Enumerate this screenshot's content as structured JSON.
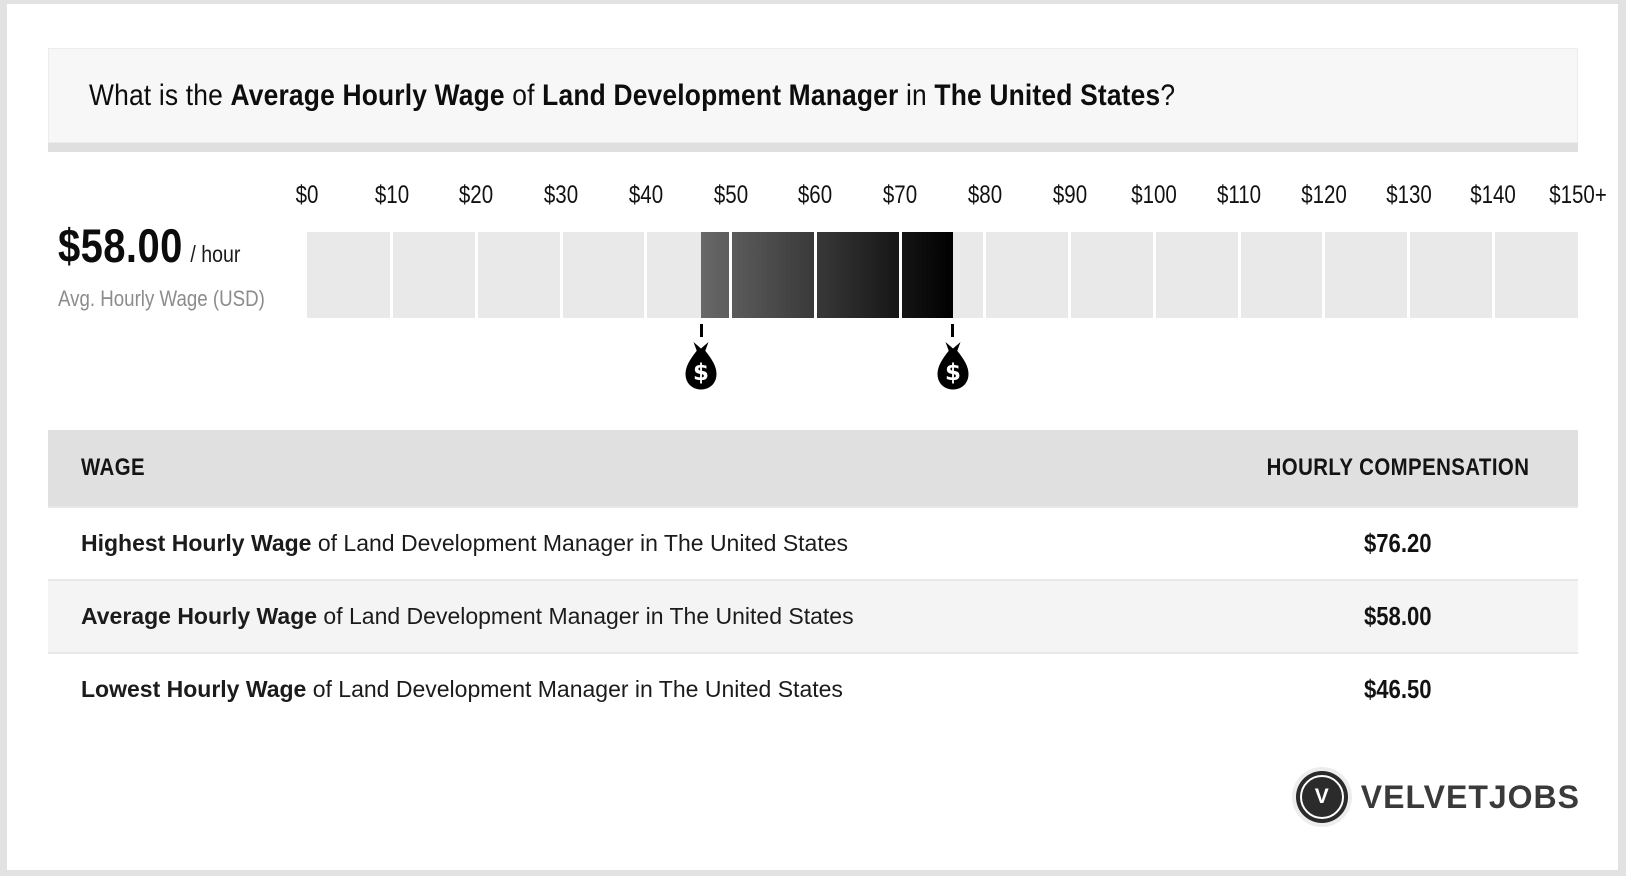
{
  "title": {
    "segments": [
      {
        "text": "What is the ",
        "bold": false
      },
      {
        "text": "Average Hourly Wage",
        "bold": true
      },
      {
        "text": " of ",
        "bold": false
      },
      {
        "text": "Land Development Manager",
        "bold": true
      },
      {
        "text": " in ",
        "bold": false
      },
      {
        "text": "The United States",
        "bold": true
      },
      {
        "text": "?",
        "bold": false
      }
    ]
  },
  "summary": {
    "amount": "$58.00",
    "unit": "/ hour",
    "caption": "Avg. Hourly Wage (USD)"
  },
  "chart_data": {
    "type": "bar",
    "subtype": "range-highlight-scale",
    "ticks": [
      "$0",
      "$10",
      "$20",
      "$30",
      "$40",
      "$50",
      "$60",
      "$70",
      "$80",
      "$90",
      "$100",
      "$110",
      "$120",
      "$130",
      "$140",
      "$150+"
    ],
    "axis_min": 0,
    "axis_max": 150,
    "segment_size": 10,
    "lowest_hourly_wage": 46.5,
    "average_hourly_wage": 58.0,
    "highest_hourly_wage": 76.2,
    "unit": "USD per hour",
    "track_color": "#e9e9e9",
    "highlight_gradient": [
      "#686868",
      "#000000"
    ],
    "marker_symbol": "$"
  },
  "table": {
    "col_wage": "WAGE",
    "col_comp": "HOURLY COMPENSATION",
    "rows": [
      {
        "label_bold": "Highest Hourly Wage",
        "label_rest": " of Land Development Manager in The United States",
        "amount": "$76.20"
      },
      {
        "label_bold": "Average Hourly Wage",
        "label_rest": " of Land Development Manager in The United States",
        "amount": "$58.00"
      },
      {
        "label_bold": "Lowest Hourly Wage",
        "label_rest": " of Land Development Manager in The United States",
        "amount": "$46.50"
      }
    ]
  },
  "logo": {
    "monogram": "V",
    "text": "VELVETJOBS"
  }
}
